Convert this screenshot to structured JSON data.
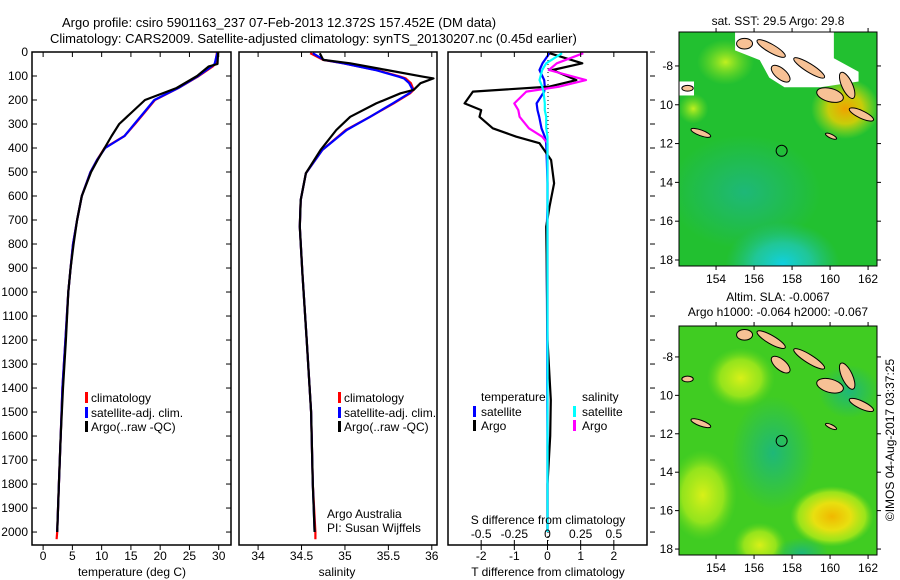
{
  "header": {
    "title_line1": "Argo profile: csiro 5901163_237 07-Feb-2013 12.372S 157.452E (DM data)",
    "title_line2": "Climatology: CARS2009. Satellite-adjusted climatology: synTS_20130207.nc (0.45d earlier)"
  },
  "credit": {
    "line1": "Argo Australia",
    "line2": "PI: Susan Wijffels"
  },
  "timestamp": "©IMOS 04-Aug-2017 03:37:25",
  "colors": {
    "climatology": "#ff0000",
    "satellite": "#0000ff",
    "argo": "#000000",
    "sal_satellite": "#00ffff",
    "sal_argo": "#ff00ff",
    "land": "#f7c195"
  },
  "depth_ticks": [
    "0",
    "100",
    "200",
    "300",
    "400",
    "500",
    "600",
    "700",
    "800",
    "900",
    "1000",
    "1100",
    "1200",
    "1300",
    "1400",
    "1500",
    "1600",
    "1700",
    "1800",
    "1900",
    "2000"
  ],
  "chart_data": [
    {
      "type": "line",
      "id": "temperature",
      "xlabel": "temperature (deg C)",
      "ylabel": "depth",
      "xlim": [
        -1.9,
        32.1
      ],
      "ylim": [
        0,
        2054
      ],
      "xticks": [
        0,
        5,
        10,
        15,
        20,
        25,
        30
      ],
      "xtick_labels": [
        "0",
        "5",
        "10",
        "15",
        "20",
        "25",
        "30"
      ],
      "legend": [
        "climatology",
        "satellite-adj. clim.",
        "Argo(..raw -QC)"
      ],
      "depth": [
        0,
        50,
        60,
        100,
        150,
        200,
        250,
        300,
        350,
        400,
        450,
        500,
        600,
        700,
        800,
        900,
        1000,
        1200,
        1400,
        1600,
        1800,
        2000,
        2030
      ],
      "series": [
        {
          "name": "climatology",
          "color": "#ff0000",
          "values": [
            29.7,
            29.4,
            29.0,
            26.6,
            23.1,
            19.1,
            17.4,
            15.7,
            13.9,
            10.5,
            9.2,
            8.1,
            6.6,
            5.8,
            5.1,
            4.7,
            4.3,
            3.8,
            3.3,
            3.0,
            2.7,
            2.4,
            2.3
          ]
        },
        {
          "name": "satellite-adj. clim.",
          "color": "#0000ff",
          "values": [
            29.8,
            29.3,
            28.8,
            26.5,
            23.1,
            19.0,
            17.3,
            15.6,
            13.9,
            10.6,
            9.2,
            8.1,
            6.6,
            5.8,
            5.1,
            4.7,
            4.3,
            3.8,
            3.3,
            3.0,
            2.7,
            2.4,
            null
          ]
        },
        {
          "name": "Argo(..raw -QC)",
          "color": "#000000",
          "values": [
            29.9,
            29.8,
            28.3,
            26.3,
            22.8,
            17.4,
            15.2,
            13.0,
            11.7,
            10.5,
            9.3,
            8.2,
            6.6,
            5.8,
            5.2,
            4.7,
            4.3,
            3.9,
            3.4,
            3.0,
            2.7,
            2.4,
            null
          ]
        }
      ]
    },
    {
      "type": "line",
      "id": "salinity",
      "xlabel": "salinity",
      "ylabel": "depth",
      "xlim": [
        33.78,
        36.06
      ],
      "ylim": [
        0,
        2054
      ],
      "xticks": [
        34,
        34.5,
        35,
        35.5,
        36
      ],
      "xtick_labels": [
        "34",
        "34.5",
        "35",
        "35.5",
        "36"
      ],
      "legend": [
        "climatology",
        "satellite-adj. clim.",
        "Argo(..raw -QC)"
      ],
      "depth": [
        5,
        33,
        47,
        75,
        103,
        110,
        130,
        158,
        172,
        214,
        270,
        325,
        408,
        505,
        617,
        728,
        922,
        1200,
        1500,
        1800,
        2000,
        2030
      ],
      "series": [
        {
          "name": "climatology",
          "color": "#ff0000",
          "values": [
            34.6,
            34.75,
            34.98,
            35.36,
            35.64,
            35.7,
            35.76,
            35.79,
            35.75,
            35.56,
            35.29,
            35.01,
            34.74,
            34.55,
            34.49,
            34.48,
            34.51,
            34.56,
            34.61,
            34.63,
            34.66,
            34.66
          ]
        },
        {
          "name": "satellite-adj. clim.",
          "color": "#0000ff",
          "values": [
            34.63,
            34.76,
            34.98,
            35.35,
            35.62,
            35.68,
            35.74,
            35.78,
            35.74,
            35.55,
            35.29,
            35.02,
            34.74,
            34.55,
            34.49,
            34.48,
            34.51,
            34.56,
            34.61,
            34.63,
            34.65,
            null
          ]
        },
        {
          "name": "Argo(..raw -QC)",
          "color": "#000000",
          "values": [
            34.71,
            34.75,
            35.06,
            35.48,
            35.9,
            36.02,
            35.87,
            35.79,
            35.64,
            35.36,
            35.06,
            34.9,
            34.72,
            34.55,
            34.49,
            34.48,
            34.51,
            34.56,
            34.61,
            34.63,
            34.65,
            null
          ]
        }
      ]
    },
    {
      "type": "line",
      "id": "difference",
      "xlabel": "T difference from climatology",
      "xlabel2": "S difference from climatology",
      "xlim": [
        -3,
        3
      ],
      "xlim2": [
        -0.75,
        0.75
      ],
      "ylim": [
        0,
        2054
      ],
      "xticks": [
        -2,
        -1,
        0,
        1,
        2
      ],
      "xtick_labels": [
        "-2",
        "-1",
        "0",
        "1",
        "2"
      ],
      "xticks2": [
        -0.5,
        -0.25,
        0,
        0.25,
        0.5
      ],
      "xtick_labels2": [
        "-0.5",
        "-0.25",
        "0",
        "0.25",
        "0.5"
      ],
      "legend_temperature": {
        "heading": "temperature",
        "items": [
          "satellite",
          "Argo"
        ]
      },
      "legend_salinity": {
        "heading": "salinity",
        "items": [
          "satellite",
          "Argo"
        ]
      },
      "depth": [
        5,
        47,
        75,
        117,
        144,
        165,
        214,
        242,
        270,
        318,
        353,
        380,
        450,
        547,
        645,
        728,
        900,
        1200,
        1450,
        1600,
        1800,
        2000
      ],
      "series": [
        {
          "name": "T satellite",
          "axis": "T",
          "color": "#0000ff",
          "values": [
            0.06,
            -0.15,
            -0.24,
            -0.1,
            -0.08,
            -0.1,
            -0.33,
            -0.3,
            -0.25,
            -0.18,
            -0.08,
            -0.04,
            -0.02,
            0,
            0,
            -0.02,
            -0.02,
            -0.01,
            -0.01,
            0,
            0,
            0
          ]
        },
        {
          "name": "T Argo",
          "axis": "T",
          "color": "#000000",
          "values": [
            0.06,
            1.05,
            0.15,
            0.87,
            0.06,
            -2.25,
            -2.5,
            -2.0,
            -2.05,
            -1.65,
            -0.94,
            -0.24,
            0.11,
            0.2,
            0.06,
            -0.04,
            -0.02,
            0,
            0.1,
            0.08,
            0,
            0
          ]
        },
        {
          "name": "S Argo",
          "axis": "S",
          "color": "#ff00ff",
          "values": [
            0.27,
            0.07,
            0.01,
            0.29,
            0.09,
            -0.16,
            -0.25,
            -0.22,
            -0.21,
            -0.14,
            -0.04,
            0,
            0,
            0,
            0,
            0,
            0,
            0,
            0,
            0,
            0,
            0
          ]
        },
        {
          "name": "S satellite",
          "axis": "S",
          "color": "#00ffff",
          "values": [
            0.11,
            -0.01,
            -0.04,
            -0.06,
            -0.04,
            -0.03,
            -0.02,
            -0.02,
            -0.01,
            -0.01,
            0,
            0,
            0,
            0,
            0,
            0,
            0,
            0,
            0,
            0,
            0,
            0
          ]
        }
      ]
    },
    {
      "type": "heatmap",
      "id": "sst-map",
      "title": "sat. SST: 29.5 Argo: 29.8",
      "lon_lim": [
        152.05,
        162.47
      ],
      "lat_lim": [
        -18.31,
        -6.25
      ],
      "lon_ticks": [
        154,
        156,
        158,
        160,
        162
      ],
      "lon_tick_labels": [
        "154",
        "156",
        "158",
        "160",
        "162"
      ],
      "lat_ticks": [
        -8,
        -10,
        -12,
        -14,
        -16,
        -18
      ],
      "lat_tick_labels": [
        "-8",
        "10",
        "12",
        "14",
        "16",
        "18"
      ],
      "marker": {
        "lon": 157.452,
        "lat": -12.372
      }
    },
    {
      "type": "heatmap",
      "id": "sla-map",
      "title": "Altim. SLA: -0.0067",
      "subtitle": "Argo h1000: -0.064 h2000: -0.067",
      "lon_lim": [
        152.05,
        162.47
      ],
      "lat_lim": [
        -18.31,
        -6.39
      ],
      "lon_ticks": [
        154,
        156,
        158,
        160,
        162
      ],
      "lon_tick_labels": [
        "154",
        "156",
        "158",
        "160",
        "162"
      ],
      "lat_ticks": [
        -8,
        -10,
        -12,
        -14,
        -16,
        -18
      ],
      "lat_tick_labels": [
        "-8",
        "10",
        "12",
        "14",
        "16",
        "18"
      ],
      "marker": {
        "lon": 157.452,
        "lat": -12.372
      }
    }
  ]
}
